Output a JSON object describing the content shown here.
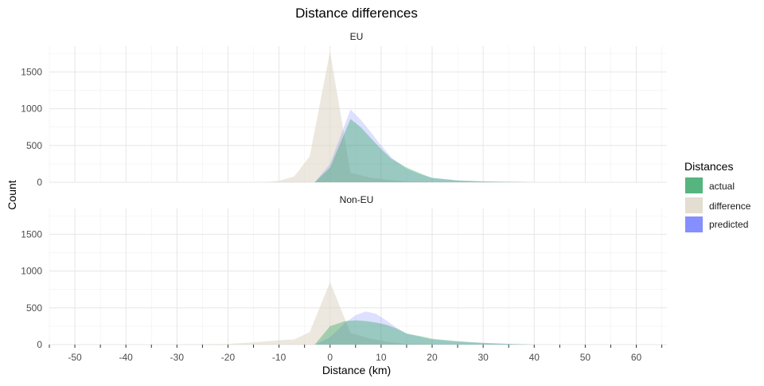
{
  "chart_data": {
    "type": "area",
    "title": "Distance differences",
    "xlabel": "Distance (km)",
    "ylabel": "Count",
    "xlim": [
      -55,
      66
    ],
    "ylim": [
      0,
      1850
    ],
    "x_ticks": [
      -50,
      -40,
      -30,
      -20,
      -10,
      0,
      10,
      20,
      30,
      40,
      50,
      60
    ],
    "y_ticks": [
      0,
      500,
      1000,
      1500
    ],
    "grid": true,
    "legend": {
      "title": "Distances",
      "position": "right",
      "entries": [
        {
          "label": "actual",
          "color": "#2ca25f"
        },
        {
          "label": "difference",
          "color": "#ddd5c5"
        },
        {
          "label": "predicted",
          "color": "#6673ff"
        }
      ]
    },
    "panels": [
      {
        "label": "EU",
        "series": [
          {
            "name": "difference",
            "color": "#ddd5c5",
            "opacity": 0.55,
            "x": [
              -15,
              -12,
              -10,
              -7,
              -4,
              0,
              4,
              8,
              12,
              15,
              20
            ],
            "y": [
              0,
              5,
              20,
              80,
              350,
              1780,
              130,
              60,
              30,
              10,
              0
            ]
          },
          {
            "name": "predicted",
            "color": "#6673ff",
            "opacity": 0.22,
            "x": [
              -3,
              0,
              4,
              6,
              8,
              10,
              12,
              15,
              18,
              20,
              25,
              30,
              35,
              40
            ],
            "y": [
              0,
              250,
              990,
              850,
              680,
              500,
              340,
              180,
              100,
              60,
              25,
              10,
              5,
              0
            ]
          },
          {
            "name": "actual",
            "color": "#2ca25f",
            "opacity": 0.38,
            "x": [
              -3,
              0,
              4,
              6,
              8,
              10,
              12,
              15,
              18,
              20,
              25,
              30,
              35,
              40
            ],
            "y": [
              0,
              200,
              860,
              750,
              600,
              450,
              320,
              200,
              110,
              60,
              25,
              12,
              5,
              0
            ]
          }
        ]
      },
      {
        "label": "Non-EU",
        "series": [
          {
            "name": "difference",
            "color": "#ddd5c5",
            "opacity": 0.55,
            "x": [
              -30,
              -20,
              -15,
              -10,
              -7,
              -4,
              0,
              4,
              8,
              12,
              15,
              20
            ],
            "y": [
              0,
              10,
              30,
              60,
              70,
              170,
              850,
              160,
              80,
              30,
              10,
              0
            ]
          },
          {
            "name": "predicted",
            "color": "#6673ff",
            "opacity": 0.22,
            "x": [
              -3,
              0,
              3,
              5,
              7,
              9,
              11,
              13,
              15,
              18,
              20,
              25,
              30,
              35,
              40
            ],
            "y": [
              0,
              100,
              300,
              400,
              450,
              420,
              330,
              230,
              150,
              100,
              70,
              40,
              20,
              10,
              0
            ]
          },
          {
            "name": "actual",
            "color": "#2ca25f",
            "opacity": 0.38,
            "x": [
              -3,
              0,
              3,
              5,
              7,
              9,
              11,
              13,
              15,
              18,
              20,
              25,
              30,
              35,
              40
            ],
            "y": [
              0,
              250,
              320,
              330,
              320,
              300,
              270,
              220,
              150,
              110,
              80,
              45,
              25,
              10,
              0
            ]
          }
        ]
      }
    ]
  }
}
